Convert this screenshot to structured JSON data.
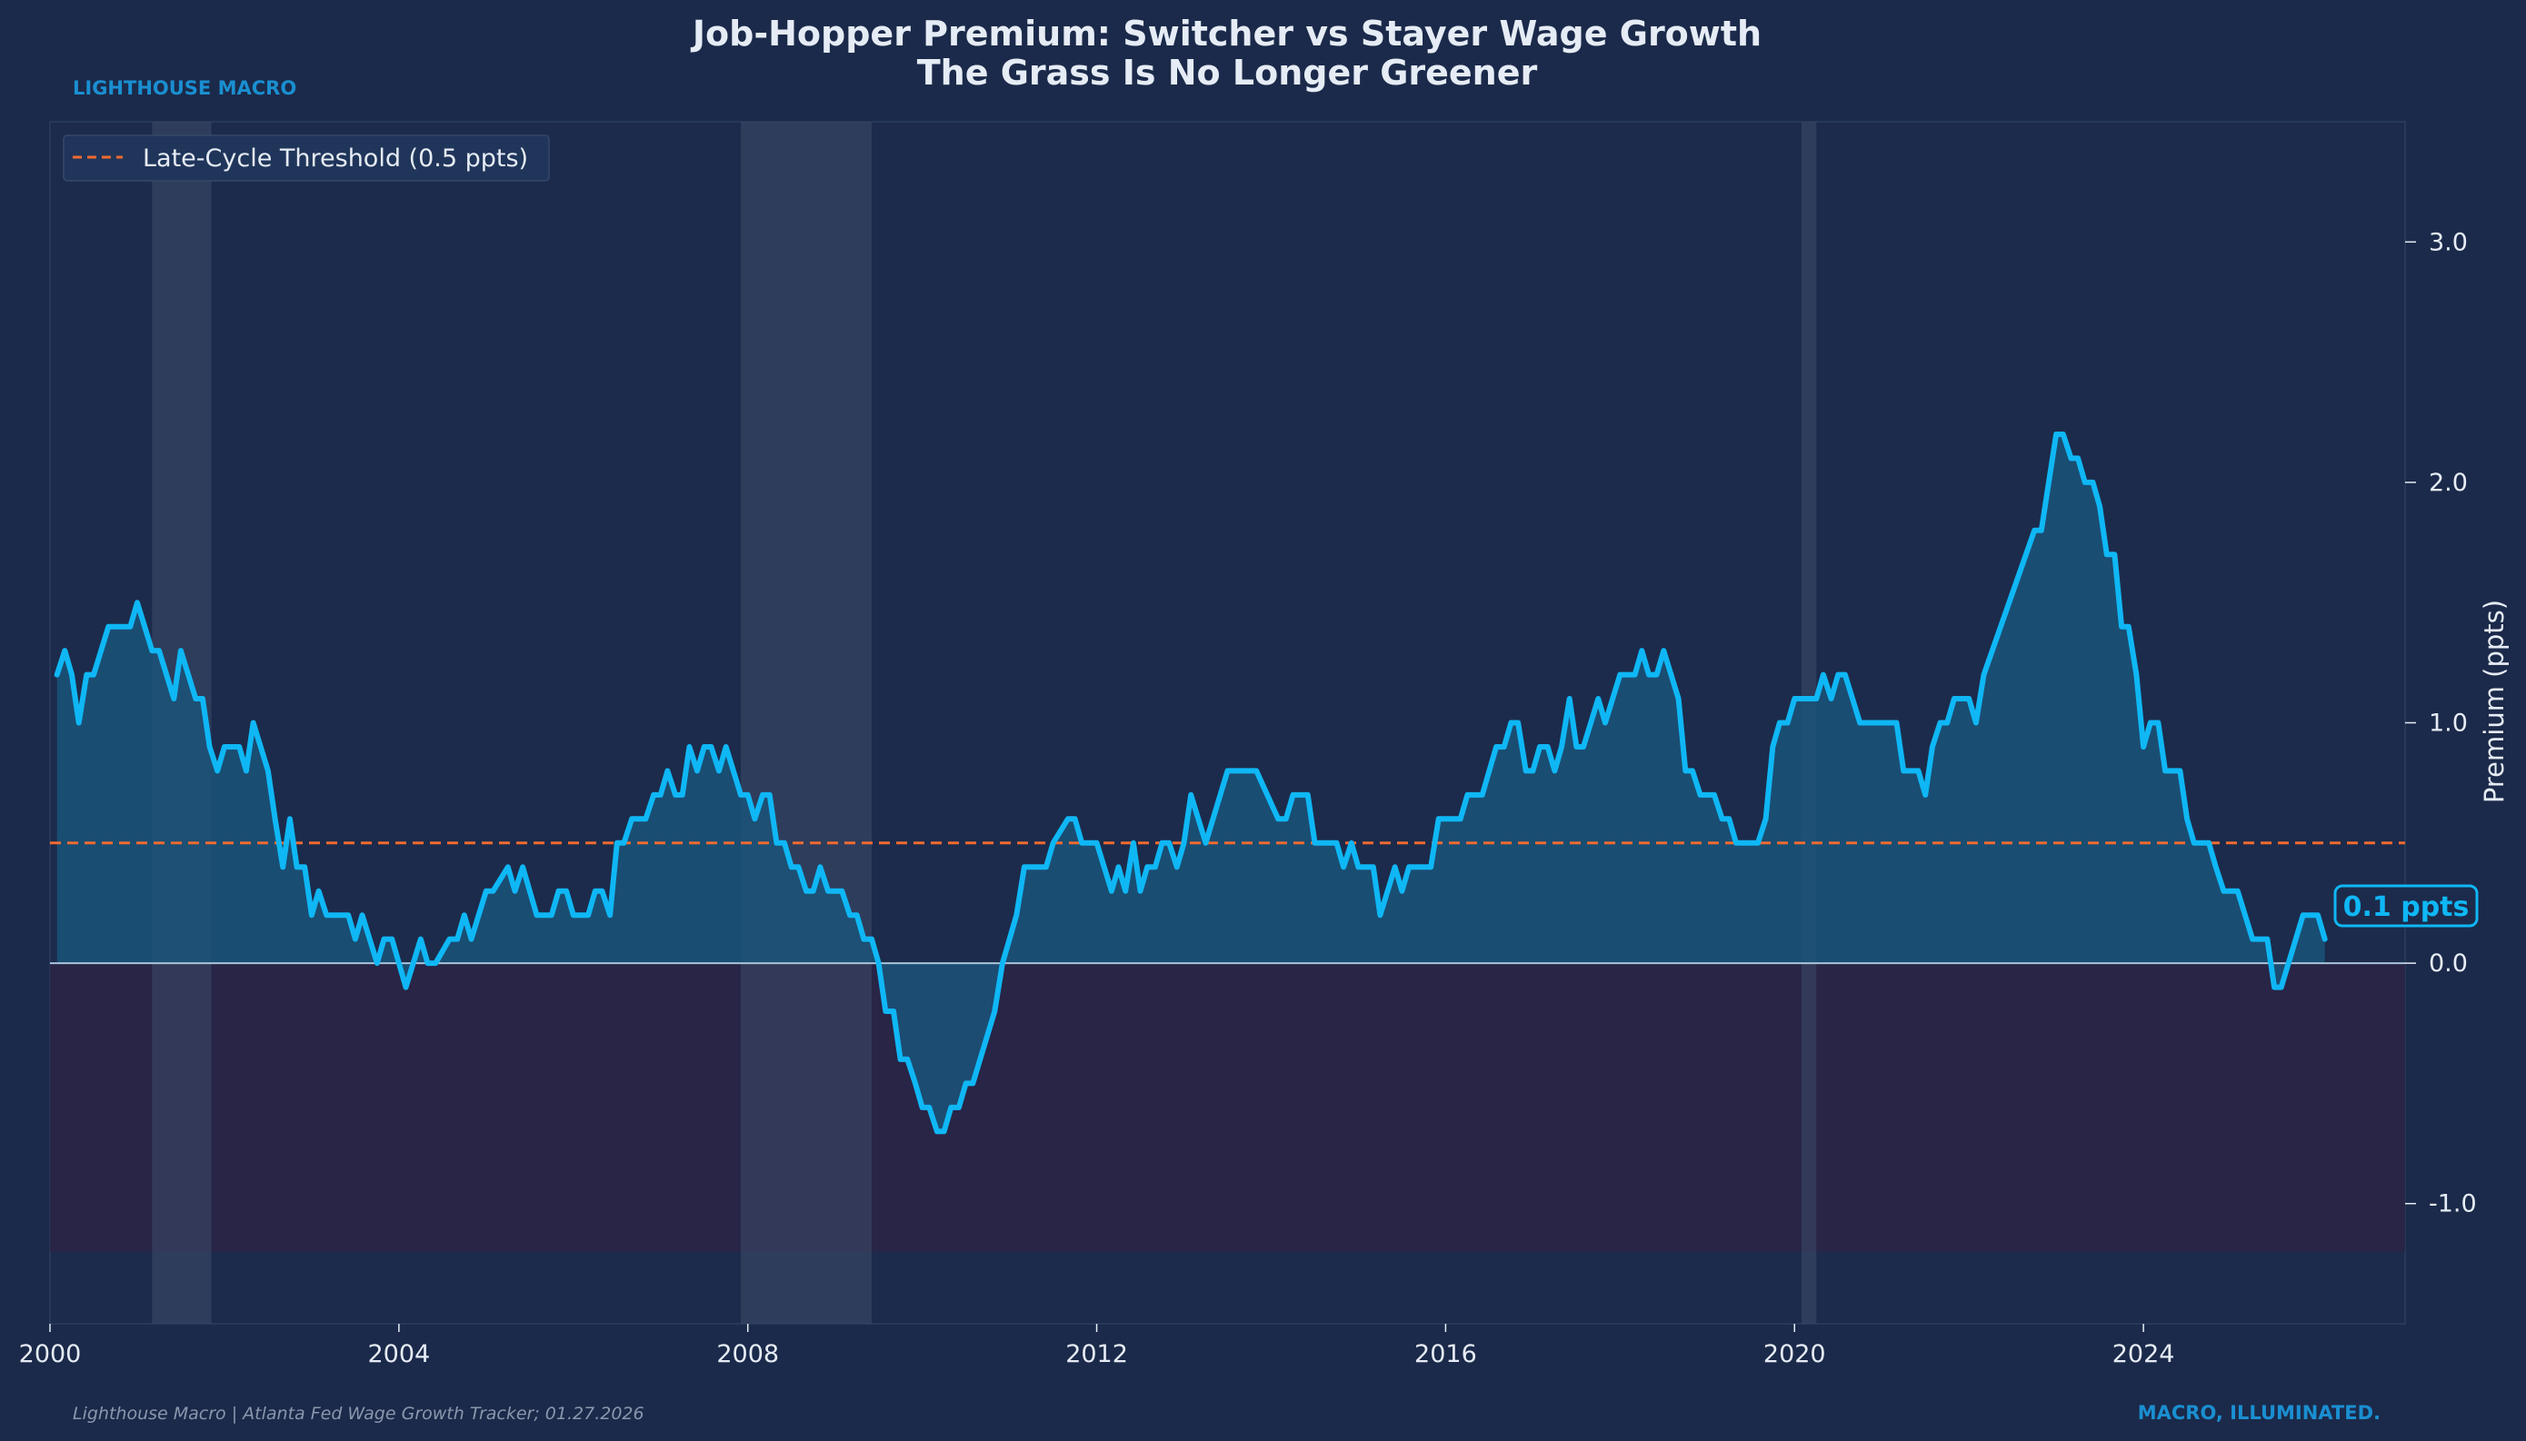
{
  "header": {
    "title_line1": "Job-Hopper Premium: Switcher vs Stayer Wage Growth",
    "title_line2": "The Grass Is No Longer Greener",
    "brand_top": "LIGHTHOUSE MACRO",
    "brand_bottom": "MACRO, ILLUMINATED.",
    "source": "Lighthouse Macro | Atlanta Fed Wage Growth Tracker; 01.27.2026"
  },
  "colors": {
    "background": "#1b2a4a",
    "line": "#0fb7f5",
    "area_fill": "#1a5479",
    "threshold": "#f06a30",
    "recession_band": "#3b4a66",
    "negative_zone": "#2a2545",
    "zero_line": "#a9c4db",
    "text": "#e6ecf5",
    "accent": "#1a8fd1"
  },
  "chart_data": {
    "type": "area",
    "title": "Job-Hopper Premium: Switcher vs Stayer Wage Growth",
    "subtitle": "The Grass Is No Longer Greener",
    "xlabel": "",
    "ylabel": "Premium (ppts)",
    "xlim": [
      2000.0,
      2027.0
    ],
    "ylim": [
      -1.5,
      3.5
    ],
    "x_ticks": [
      2000,
      2004,
      2008,
      2012,
      2016,
      2020,
      2024
    ],
    "y_ticks": [
      -1.0,
      0.0,
      1.0,
      2.0,
      3.0
    ],
    "y_tick_labels": [
      "-1.0",
      "0.0",
      "1.0",
      "2.0",
      "3.0"
    ],
    "threshold": {
      "value": 0.5,
      "label": "Late-Cycle Threshold (0.5 ppts)"
    },
    "legend_position": "top-left",
    "grid": false,
    "recessions": [
      [
        2001.17,
        2001.85
      ],
      [
        2007.92,
        2009.42
      ],
      [
        2020.08,
        2020.25
      ]
    ],
    "negative_zone": [
      -1.2,
      0.0
    ],
    "last_value_label": "0.1 ppts",
    "series": [
      {
        "name": "Job-Hopper Premium",
        "points": [
          [
            2000.08,
            1.2
          ],
          [
            2000.17,
            1.3
          ],
          [
            2000.25,
            1.2
          ],
          [
            2000.33,
            1.0
          ],
          [
            2000.42,
            1.2
          ],
          [
            2000.5,
            1.2
          ],
          [
            2000.67,
            1.4
          ],
          [
            2000.83,
            1.4
          ],
          [
            2000.92,
            1.4
          ],
          [
            2001.0,
            1.5
          ],
          [
            2001.17,
            1.3
          ],
          [
            2001.25,
            1.3
          ],
          [
            2001.42,
            1.1
          ],
          [
            2001.5,
            1.3
          ],
          [
            2001.67,
            1.1
          ],
          [
            2001.75,
            1.1
          ],
          [
            2001.83,
            0.9
          ],
          [
            2001.92,
            0.8
          ],
          [
            2002.0,
            0.9
          ],
          [
            2002.17,
            0.9
          ],
          [
            2002.25,
            0.8
          ],
          [
            2002.33,
            1.0
          ],
          [
            2002.5,
            0.8
          ],
          [
            2002.58,
            0.6
          ],
          [
            2002.67,
            0.4
          ],
          [
            2002.75,
            0.6
          ],
          [
            2002.83,
            0.4
          ],
          [
            2002.92,
            0.4
          ],
          [
            2003.0,
            0.2
          ],
          [
            2003.08,
            0.3
          ],
          [
            2003.17,
            0.2
          ],
          [
            2003.42,
            0.2
          ],
          [
            2003.5,
            0.1
          ],
          [
            2003.58,
            0.2
          ],
          [
            2003.75,
            0.0
          ],
          [
            2003.83,
            0.1
          ],
          [
            2003.92,
            0.1
          ],
          [
            2004.08,
            -0.1
          ],
          [
            2004.25,
            0.1
          ],
          [
            2004.33,
            0.0
          ],
          [
            2004.42,
            0.0
          ],
          [
            2004.58,
            0.1
          ],
          [
            2004.67,
            0.1
          ],
          [
            2004.75,
            0.2
          ],
          [
            2004.83,
            0.1
          ],
          [
            2005.0,
            0.3
          ],
          [
            2005.08,
            0.3
          ],
          [
            2005.25,
            0.4
          ],
          [
            2005.33,
            0.3
          ],
          [
            2005.42,
            0.4
          ],
          [
            2005.58,
            0.2
          ],
          [
            2005.75,
            0.2
          ],
          [
            2005.83,
            0.3
          ],
          [
            2005.92,
            0.3
          ],
          [
            2006.0,
            0.2
          ],
          [
            2006.17,
            0.2
          ],
          [
            2006.25,
            0.3
          ],
          [
            2006.33,
            0.3
          ],
          [
            2006.42,
            0.2
          ],
          [
            2006.5,
            0.5
          ],
          [
            2006.58,
            0.5
          ],
          [
            2006.67,
            0.6
          ],
          [
            2006.83,
            0.6
          ],
          [
            2006.92,
            0.7
          ],
          [
            2007.0,
            0.7
          ],
          [
            2007.08,
            0.8
          ],
          [
            2007.17,
            0.7
          ],
          [
            2007.25,
            0.7
          ],
          [
            2007.33,
            0.9
          ],
          [
            2007.42,
            0.8
          ],
          [
            2007.5,
            0.9
          ],
          [
            2007.58,
            0.9
          ],
          [
            2007.67,
            0.8
          ],
          [
            2007.75,
            0.9
          ],
          [
            2007.92,
            0.7
          ],
          [
            2008.0,
            0.7
          ],
          [
            2008.08,
            0.6
          ],
          [
            2008.17,
            0.7
          ],
          [
            2008.25,
            0.7
          ],
          [
            2008.33,
            0.5
          ],
          [
            2008.42,
            0.5
          ],
          [
            2008.5,
            0.4
          ],
          [
            2008.58,
            0.4
          ],
          [
            2008.67,
            0.3
          ],
          [
            2008.75,
            0.3
          ],
          [
            2008.83,
            0.4
          ],
          [
            2008.92,
            0.3
          ],
          [
            2009.08,
            0.3
          ],
          [
            2009.17,
            0.2
          ],
          [
            2009.25,
            0.2
          ],
          [
            2009.33,
            0.1
          ],
          [
            2009.42,
            0.1
          ],
          [
            2009.5,
            0.0
          ],
          [
            2009.58,
            -0.2
          ],
          [
            2009.67,
            -0.2
          ],
          [
            2009.75,
            -0.4
          ],
          [
            2009.83,
            -0.4
          ],
          [
            2009.92,
            -0.5
          ],
          [
            2010.0,
            -0.6
          ],
          [
            2010.08,
            -0.6
          ],
          [
            2010.17,
            -0.7
          ],
          [
            2010.25,
            -0.7
          ],
          [
            2010.33,
            -0.6
          ],
          [
            2010.42,
            -0.6
          ],
          [
            2010.5,
            -0.5
          ],
          [
            2010.58,
            -0.5
          ],
          [
            2010.83,
            -0.2
          ],
          [
            2010.92,
            0.0
          ],
          [
            2011.08,
            0.2
          ],
          [
            2011.17,
            0.4
          ],
          [
            2011.42,
            0.4
          ],
          [
            2011.5,
            0.5
          ],
          [
            2011.67,
            0.6
          ],
          [
            2011.75,
            0.6
          ],
          [
            2011.83,
            0.5
          ],
          [
            2012.0,
            0.5
          ],
          [
            2012.17,
            0.3
          ],
          [
            2012.25,
            0.4
          ],
          [
            2012.33,
            0.3
          ],
          [
            2012.42,
            0.5
          ],
          [
            2012.5,
            0.3
          ],
          [
            2012.58,
            0.4
          ],
          [
            2012.67,
            0.4
          ],
          [
            2012.75,
            0.5
          ],
          [
            2012.83,
            0.5
          ],
          [
            2012.92,
            0.4
          ],
          [
            2013.0,
            0.5
          ],
          [
            2013.08,
            0.7
          ],
          [
            2013.25,
            0.5
          ],
          [
            2013.5,
            0.8
          ],
          [
            2013.83,
            0.8
          ],
          [
            2014.08,
            0.6
          ],
          [
            2014.17,
            0.6
          ],
          [
            2014.25,
            0.7
          ],
          [
            2014.42,
            0.7
          ],
          [
            2014.5,
            0.5
          ],
          [
            2014.75,
            0.5
          ],
          [
            2014.83,
            0.4
          ],
          [
            2014.92,
            0.5
          ],
          [
            2015.0,
            0.4
          ],
          [
            2015.17,
            0.4
          ],
          [
            2015.25,
            0.2
          ],
          [
            2015.42,
            0.4
          ],
          [
            2015.5,
            0.3
          ],
          [
            2015.58,
            0.4
          ],
          [
            2015.83,
            0.4
          ],
          [
            2015.92,
            0.6
          ],
          [
            2016.17,
            0.6
          ],
          [
            2016.25,
            0.7
          ],
          [
            2016.42,
            0.7
          ],
          [
            2016.5,
            0.8
          ],
          [
            2016.58,
            0.9
          ],
          [
            2016.67,
            0.9
          ],
          [
            2016.75,
            1.0
          ],
          [
            2016.83,
            1.0
          ],
          [
            2016.92,
            0.8
          ],
          [
            2017.0,
            0.8
          ],
          [
            2017.08,
            0.9
          ],
          [
            2017.17,
            0.9
          ],
          [
            2017.25,
            0.8
          ],
          [
            2017.33,
            0.9
          ],
          [
            2017.42,
            1.1
          ],
          [
            2017.5,
            0.9
          ],
          [
            2017.58,
            0.9
          ],
          [
            2017.75,
            1.1
          ],
          [
            2017.83,
            1.0
          ],
          [
            2018.0,
            1.2
          ],
          [
            2018.17,
            1.2
          ],
          [
            2018.25,
            1.3
          ],
          [
            2018.33,
            1.2
          ],
          [
            2018.42,
            1.2
          ],
          [
            2018.5,
            1.3
          ],
          [
            2018.67,
            1.1
          ],
          [
            2018.75,
            0.8
          ],
          [
            2018.83,
            0.8
          ],
          [
            2018.92,
            0.7
          ],
          [
            2019.08,
            0.7
          ],
          [
            2019.17,
            0.6
          ],
          [
            2019.25,
            0.6
          ],
          [
            2019.33,
            0.5
          ],
          [
            2019.58,
            0.5
          ],
          [
            2019.67,
            0.6
          ],
          [
            2019.75,
            0.9
          ],
          [
            2019.83,
            1.0
          ],
          [
            2019.92,
            1.0
          ],
          [
            2020.0,
            1.1
          ],
          [
            2020.25,
            1.1
          ],
          [
            2020.33,
            1.2
          ],
          [
            2020.42,
            1.1
          ],
          [
            2020.5,
            1.2
          ],
          [
            2020.58,
            1.2
          ],
          [
            2020.75,
            1.0
          ],
          [
            2021.17,
            1.0
          ],
          [
            2021.25,
            0.8
          ],
          [
            2021.42,
            0.8
          ],
          [
            2021.5,
            0.7
          ],
          [
            2021.58,
            0.9
          ],
          [
            2021.67,
            1.0
          ],
          [
            2021.75,
            1.0
          ],
          [
            2021.83,
            1.1
          ],
          [
            2022.0,
            1.1
          ],
          [
            2022.08,
            1.0
          ],
          [
            2022.17,
            1.2
          ],
          [
            2022.75,
            1.8
          ],
          [
            2022.83,
            1.8
          ],
          [
            2023.0,
            2.2
          ],
          [
            2023.08,
            2.2
          ],
          [
            2023.17,
            2.1
          ],
          [
            2023.25,
            2.1
          ],
          [
            2023.33,
            2.0
          ],
          [
            2023.42,
            2.0
          ],
          [
            2023.5,
            1.9
          ],
          [
            2023.58,
            1.7
          ],
          [
            2023.67,
            1.7
          ],
          [
            2023.75,
            1.4
          ],
          [
            2023.83,
            1.4
          ],
          [
            2023.92,
            1.2
          ],
          [
            2024.0,
            0.9
          ],
          [
            2024.08,
            1.0
          ],
          [
            2024.17,
            1.0
          ],
          [
            2024.25,
            0.8
          ],
          [
            2024.42,
            0.8
          ],
          [
            2024.5,
            0.6
          ],
          [
            2024.58,
            0.5
          ],
          [
            2024.75,
            0.5
          ],
          [
            2024.83,
            0.4
          ],
          [
            2024.92,
            0.3
          ],
          [
            2025.08,
            0.3
          ],
          [
            2025.25,
            0.1
          ],
          [
            2025.42,
            0.1
          ],
          [
            2025.5,
            -0.1
          ],
          [
            2025.58,
            -0.1
          ],
          [
            2025.83,
            0.2
          ],
          [
            2026.0,
            0.2
          ],
          [
            2026.08,
            0.1
          ]
        ]
      }
    ]
  }
}
